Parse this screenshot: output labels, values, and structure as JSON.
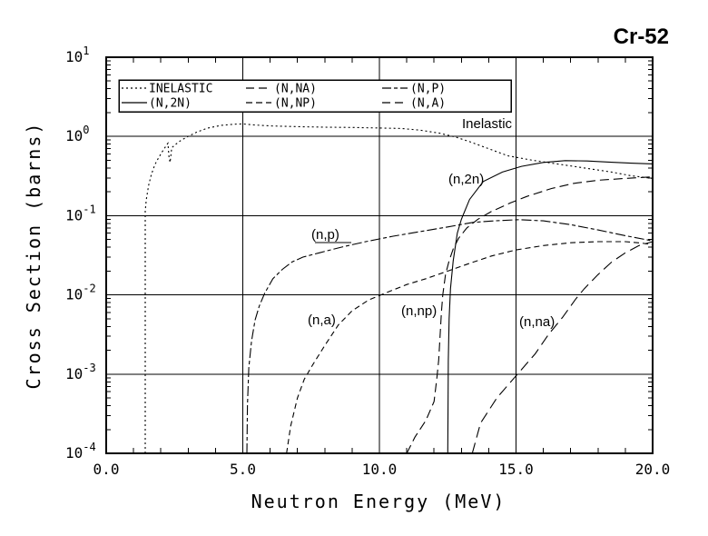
{
  "title": "Cr-52",
  "colors": {
    "ink": "#000000",
    "background": "#ffffff"
  },
  "chart_data": {
    "type": "line",
    "title": "Cr-52",
    "xlabel": "Neutron Energy (MeV)",
    "ylabel": "Cross Section (barns)",
    "grid": true,
    "x_axis": {
      "min": 0,
      "max": 20,
      "unit": "MeV",
      "major_ticks": [
        0,
        5,
        10,
        15,
        20
      ],
      "tick_labels": [
        "0.0",
        "5.0",
        "10.0",
        "15.0",
        "20.0"
      ],
      "minor_tick_step": 1,
      "gridlines_at": [
        5,
        10,
        15
      ]
    },
    "y_axis": {
      "scale": "log",
      "min": 0.0001,
      "max": 10,
      "decade_exponents": [
        1,
        0,
        -1,
        -2,
        -3,
        -4
      ],
      "decade_labels": [
        "1",
        "0",
        "-1",
        "-2",
        "-3",
        "-4"
      ],
      "gridlines_at_exponents": [
        0,
        -1,
        -2,
        -3
      ]
    },
    "legend": {
      "position": "top-inside",
      "entries": [
        {
          "label": "INELASTIC",
          "dash": "2 3"
        },
        {
          "label": "(N,NA)",
          "dash": "9 5"
        },
        {
          "label": "(N,P)",
          "dash": "10 3 4 3"
        },
        {
          "label": "(N,2N)",
          "dash": ""
        },
        {
          "label": "(N,NP)",
          "dash": "7 4"
        },
        {
          "label": "(N,A)",
          "dash": "9 5"
        }
      ]
    },
    "series": [
      {
        "name": "INELASTIC",
        "dash": "2 3",
        "points": [
          [
            1.43,
            0.0001
          ],
          [
            1.43,
            0.115
          ],
          [
            1.47,
            0.16
          ],
          [
            1.55,
            0.24
          ],
          [
            1.65,
            0.33
          ],
          [
            1.78,
            0.44
          ],
          [
            1.92,
            0.54
          ],
          [
            2.05,
            0.64
          ],
          [
            2.18,
            0.75
          ],
          [
            2.26,
            0.82
          ],
          [
            2.3,
            0.55
          ],
          [
            2.34,
            0.47
          ],
          [
            2.4,
            0.72
          ],
          [
            2.55,
            0.8
          ],
          [
            2.75,
            0.9
          ],
          [
            3.0,
            1.0
          ],
          [
            3.3,
            1.13
          ],
          [
            3.7,
            1.27
          ],
          [
            4.2,
            1.38
          ],
          [
            4.7,
            1.43
          ],
          [
            5.0,
            1.44
          ],
          [
            5.4,
            1.4
          ],
          [
            6.0,
            1.36
          ],
          [
            7.0,
            1.33
          ],
          [
            8.0,
            1.31
          ],
          [
            9.0,
            1.3
          ],
          [
            10.0,
            1.28
          ],
          [
            10.8,
            1.26
          ],
          [
            11.5,
            1.2
          ],
          [
            12.2,
            1.1
          ],
          [
            12.8,
            0.98
          ],
          [
            13.3,
            0.86
          ],
          [
            13.9,
            0.72
          ],
          [
            14.7,
            0.57
          ],
          [
            15.6,
            0.5
          ],
          [
            16.5,
            0.45
          ],
          [
            17.5,
            0.4
          ],
          [
            18.5,
            0.355
          ],
          [
            19.2,
            0.32
          ],
          [
            20,
            0.295
          ]
        ]
      },
      {
        "name": "(N,2N)",
        "dash": "",
        "points": [
          [
            12.5,
            0.0001
          ],
          [
            12.52,
            0.0015
          ],
          [
            12.55,
            0.005
          ],
          [
            12.6,
            0.012
          ],
          [
            12.7,
            0.027
          ],
          [
            12.85,
            0.06
          ],
          [
            13.0,
            0.09
          ],
          [
            13.3,
            0.16
          ],
          [
            13.8,
            0.27
          ],
          [
            14.5,
            0.355
          ],
          [
            15.2,
            0.42
          ],
          [
            16.0,
            0.47
          ],
          [
            16.8,
            0.495
          ],
          [
            17.6,
            0.49
          ],
          [
            18.4,
            0.475
          ],
          [
            19.2,
            0.46
          ],
          [
            20,
            0.45
          ]
        ]
      },
      {
        "name": "(N,P)",
        "dash": "11 3 4 3",
        "points": [
          [
            5.15,
            0.0001
          ],
          [
            5.17,
            0.0004
          ],
          [
            5.22,
            0.0012
          ],
          [
            5.32,
            0.0026
          ],
          [
            5.45,
            0.0048
          ],
          [
            5.6,
            0.0072
          ],
          [
            5.8,
            0.0105
          ],
          [
            6.1,
            0.016
          ],
          [
            6.45,
            0.021
          ],
          [
            6.8,
            0.026
          ],
          [
            7.2,
            0.03
          ],
          [
            7.8,
            0.034
          ],
          [
            8.6,
            0.04
          ],
          [
            9.5,
            0.047
          ],
          [
            10.5,
            0.055
          ],
          [
            11.5,
            0.063
          ],
          [
            12.5,
            0.072
          ],
          [
            13.4,
            0.082
          ],
          [
            14.2,
            0.086
          ],
          [
            15.1,
            0.089
          ],
          [
            16.0,
            0.086
          ],
          [
            17.0,
            0.077
          ],
          [
            18.0,
            0.066
          ],
          [
            19.0,
            0.056
          ],
          [
            20,
            0.048
          ]
        ]
      },
      {
        "name": "(N,A)",
        "dash": "6 4",
        "points": [
          [
            6.6,
            0.0001
          ],
          [
            6.75,
            0.00022
          ],
          [
            7.0,
            0.0005
          ],
          [
            7.25,
            0.00086
          ],
          [
            7.55,
            0.0013
          ],
          [
            8.0,
            0.0023
          ],
          [
            8.5,
            0.0042
          ],
          [
            9.0,
            0.0063
          ],
          [
            9.6,
            0.0086
          ],
          [
            10.2,
            0.0105
          ],
          [
            11.0,
            0.0135
          ],
          [
            11.7,
            0.016
          ],
          [
            12.5,
            0.02
          ],
          [
            13.3,
            0.025
          ],
          [
            14.1,
            0.031
          ],
          [
            15.0,
            0.037
          ],
          [
            16.0,
            0.042
          ],
          [
            17.0,
            0.0455
          ],
          [
            18.0,
            0.047
          ],
          [
            19.0,
            0.047
          ],
          [
            19.6,
            0.045
          ],
          [
            20,
            0.043
          ]
        ]
      },
      {
        "name": "(N,NP)",
        "dash": "10 5",
        "points": [
          [
            11.0,
            0.0001
          ],
          [
            11.3,
            0.00016
          ],
          [
            11.7,
            0.00026
          ],
          [
            12.0,
            0.00045
          ],
          [
            12.1,
            0.00087
          ],
          [
            12.17,
            0.0015
          ],
          [
            12.22,
            0.003
          ],
          [
            12.27,
            0.006
          ],
          [
            12.32,
            0.01
          ],
          [
            12.42,
            0.018
          ],
          [
            12.55,
            0.027
          ],
          [
            12.7,
            0.038
          ],
          [
            12.9,
            0.052
          ],
          [
            13.2,
            0.07
          ],
          [
            13.6,
            0.09
          ],
          [
            14.1,
            0.113
          ],
          [
            14.8,
            0.145
          ],
          [
            15.4,
            0.175
          ],
          [
            16.3,
            0.22
          ],
          [
            17.1,
            0.255
          ],
          [
            18.0,
            0.28
          ],
          [
            19.0,
            0.295
          ],
          [
            20,
            0.31
          ]
        ]
      },
      {
        "name": "(N,NA)",
        "dash": "12 6",
        "points": [
          [
            13.4,
            0.0001
          ],
          [
            13.7,
            0.00024
          ],
          [
            14.3,
            0.0005
          ],
          [
            15.0,
            0.00095
          ],
          [
            15.7,
            0.0018
          ],
          [
            16.2,
            0.0032
          ],
          [
            16.7,
            0.0052
          ],
          [
            17.2,
            0.009
          ],
          [
            17.5,
            0.012
          ],
          [
            18.0,
            0.018
          ],
          [
            18.5,
            0.026
          ],
          [
            19.0,
            0.034
          ],
          [
            19.5,
            0.042
          ],
          [
            20,
            0.047
          ]
        ]
      }
    ],
    "annotations": [
      {
        "text": "Inelastic"
      },
      {
        "text": "(n,2n)"
      },
      {
        "text": "(n,p)"
      },
      {
        "text": "(n,a)"
      },
      {
        "text": "(n,np)"
      },
      {
        "text": "(n,na)"
      }
    ]
  }
}
